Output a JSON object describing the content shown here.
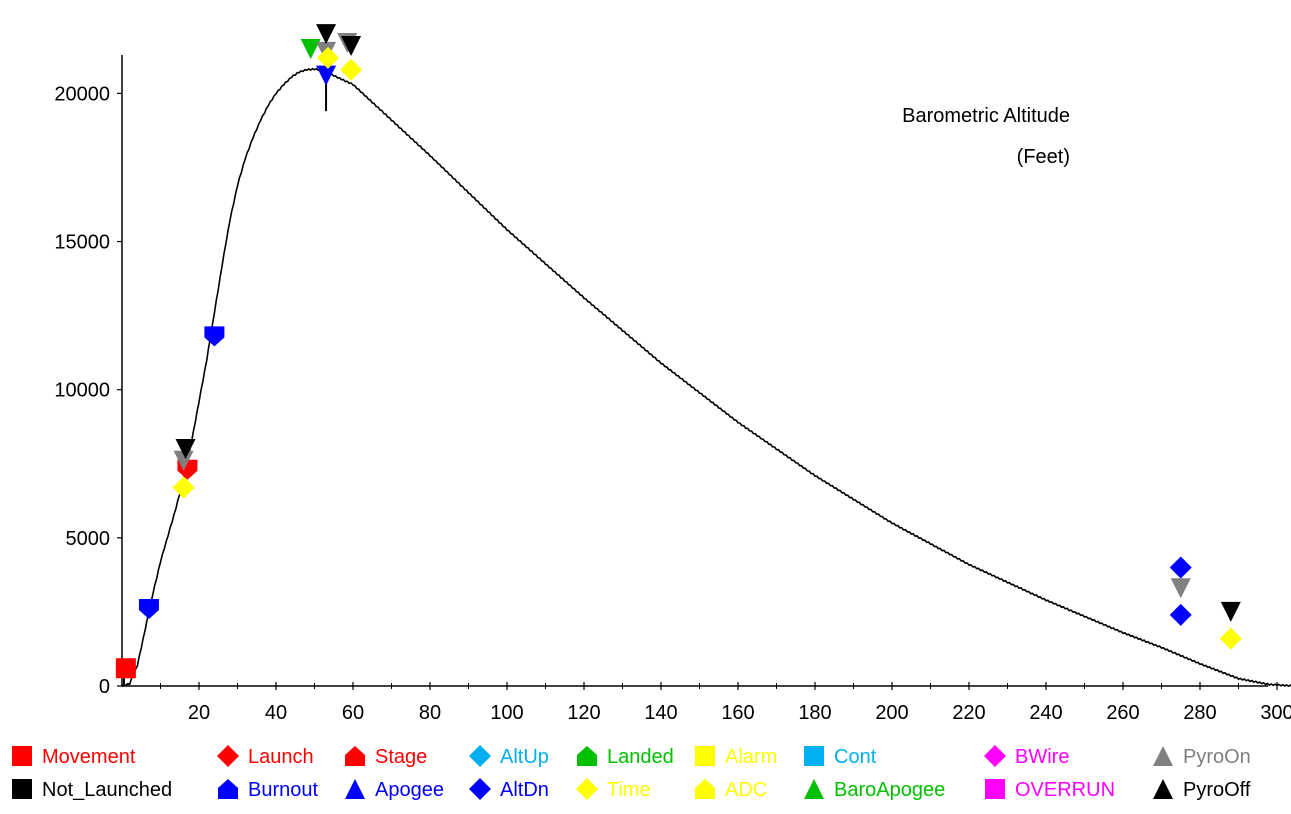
{
  "chart_data": {
    "type": "line",
    "title": "Barometric Altitude",
    "subtitle": "(Feet)",
    "xlabel": "",
    "ylabel": "",
    "xlim": [
      0,
      305
    ],
    "ylim": [
      0,
      21500
    ],
    "grid": false,
    "x_ticks": [
      20,
      40,
      60,
      80,
      100,
      120,
      140,
      160,
      180,
      200,
      220,
      240,
      260,
      280,
      300
    ],
    "y_ticks": [
      0,
      5000,
      10000,
      15000,
      20000
    ],
    "series": [
      {
        "points": [
          [
            0,
            0
          ],
          [
            2,
            80
          ],
          [
            4,
            700
          ],
          [
            6,
            1900
          ],
          [
            8,
            3100
          ],
          [
            10,
            4200
          ],
          [
            12,
            5100
          ],
          [
            14,
            6000
          ],
          [
            16,
            7000
          ],
          [
            18,
            8200
          ],
          [
            20,
            9600
          ],
          [
            22,
            11000
          ],
          [
            24,
            12600
          ],
          [
            26,
            14200
          ],
          [
            28,
            15700
          ],
          [
            30,
            16900
          ],
          [
            32,
            17800
          ],
          [
            34,
            18500
          ],
          [
            36,
            19100
          ],
          [
            38,
            19600
          ],
          [
            40,
            20000
          ],
          [
            42,
            20300
          ],
          [
            44,
            20550
          ],
          [
            46,
            20720
          ],
          [
            48,
            20800
          ],
          [
            50,
            20820
          ],
          [
            52,
            20780
          ],
          [
            60,
            20300
          ],
          [
            80,
            17900
          ],
          [
            100,
            15400
          ],
          [
            120,
            13100
          ],
          [
            140,
            10900
          ],
          [
            160,
            8900
          ],
          [
            180,
            7100
          ],
          [
            200,
            5500
          ],
          [
            220,
            4100
          ],
          [
            240,
            2900
          ],
          [
            260,
            1800
          ],
          [
            270,
            1300
          ],
          [
            280,
            750
          ],
          [
            290,
            250
          ],
          [
            298,
            50
          ],
          [
            305,
            0
          ]
        ]
      }
    ],
    "markers": [
      {
        "event": "Movement",
        "shape": "square",
        "color": "#ff0000",
        "x": 1,
        "y": 600
      },
      {
        "event": "Burnout",
        "shape": "pentagon-down",
        "color": "#0000ff",
        "x": 7,
        "y": 2600
      },
      {
        "event": "Time",
        "shape": "diamond",
        "color": "#ffff00",
        "x": 16,
        "y": 6700
      },
      {
        "event": "Stage",
        "shape": "pentagon-down",
        "color": "#ff0000",
        "x": 17,
        "y": 7300
      },
      {
        "event": "PyroOn",
        "shape": "triangle-down",
        "color": "#808080",
        "x": 16,
        "y": 7600
      },
      {
        "event": "PyroOff",
        "shape": "triangle-down",
        "color": "#000000",
        "x": 16.5,
        "y": 8000
      },
      {
        "event": "Burnout",
        "shape": "pentagon-down",
        "color": "#0000ff",
        "x": 24,
        "y": 11800
      },
      {
        "event": "BaroApogee",
        "shape": "triangle-down",
        "color": "#00c000",
        "x": 49,
        "y": 21500
      },
      {
        "event": "Apogee",
        "shape": "triangle-down",
        "color": "#0000ff",
        "x": 53,
        "y": 20600
      },
      {
        "event": "PyroOn",
        "shape": "triangle-down",
        "color": "#808080",
        "x": 53,
        "y": 21400
      },
      {
        "event": "PyroOff",
        "shape": "triangle-down",
        "color": "#000000",
        "x": 53,
        "y": 22000
      },
      {
        "event": "Time",
        "shape": "diamond",
        "color": "#ffff00",
        "x": 53.5,
        "y": 21200
      },
      {
        "event": "PyroOn",
        "shape": "triangle-down",
        "color": "#808080",
        "x": 58.5,
        "y": 21700
      },
      {
        "event": "PyroOff",
        "shape": "triangle-down",
        "color": "#000000",
        "x": 59.5,
        "y": 21600
      },
      {
        "event": "Time",
        "shape": "diamond",
        "color": "#ffff00",
        "x": 59.5,
        "y": 20800
      },
      {
        "event": "AltDn",
        "shape": "diamond",
        "color": "#0000ff",
        "x": 275,
        "y": 4000
      },
      {
        "event": "PyroOn",
        "shape": "triangle-down",
        "color": "#808080",
        "x": 275,
        "y": 3300
      },
      {
        "event": "AltDn",
        "shape": "diamond",
        "color": "#0000ff",
        "x": 275,
        "y": 2400
      },
      {
        "event": "PyroOff",
        "shape": "triangle-down",
        "color": "#000000",
        "x": 288,
        "y": 2500
      },
      {
        "event": "Time",
        "shape": "diamond",
        "color": "#ffff00",
        "x": 288,
        "y": 1600
      }
    ],
    "event_lines": [
      {
        "x": 0.5,
        "y_from": 0,
        "y_to": 600
      },
      {
        "x": 53,
        "y_from": 19400,
        "y_to": 21000
      }
    ],
    "legend": [
      [
        {
          "label": "Movement",
          "shape": "square",
          "color": "#ff0000"
        },
        {
          "label": "Launch",
          "shape": "diamond",
          "color": "#ff0000"
        },
        {
          "label": "Stage",
          "shape": "pentagon-up",
          "color": "#ff0000"
        },
        {
          "label": "AltUp",
          "shape": "diamond",
          "color": "#00b0f0"
        },
        {
          "label": "Landed",
          "shape": "pentagon-up",
          "color": "#00c000"
        },
        {
          "label": "Alarm",
          "shape": "square",
          "color": "#ffff00"
        },
        {
          "label": "Cont",
          "shape": "square",
          "color": "#00b0f0"
        },
        {
          "label": "BWire",
          "shape": "diamond",
          "color": "#ff00ff"
        },
        {
          "label": "PyroOn",
          "shape": "triangle-up",
          "color": "#808080"
        }
      ],
      [
        {
          "label": "Not_Launched",
          "shape": "square",
          "color": "#000000"
        },
        {
          "label": "Burnout",
          "shape": "pentagon-up",
          "color": "#0000ff"
        },
        {
          "label": "Apogee",
          "shape": "triangle-up",
          "color": "#0000ff"
        },
        {
          "label": "AltDn",
          "shape": "diamond",
          "color": "#0000ff"
        },
        {
          "label": "Time",
          "shape": "diamond",
          "color": "#ffff00"
        },
        {
          "label": "ADC",
          "shape": "pentagon-up",
          "color": "#ffff00"
        },
        {
          "label": "BaroApogee",
          "shape": "triangle-up",
          "color": "#00c000"
        },
        {
          "label": "OVERRUN",
          "shape": "square",
          "color": "#ff00ff"
        },
        {
          "label": "PyroOff",
          "shape": "triangle-up",
          "color": "#000000"
        }
      ]
    ]
  }
}
